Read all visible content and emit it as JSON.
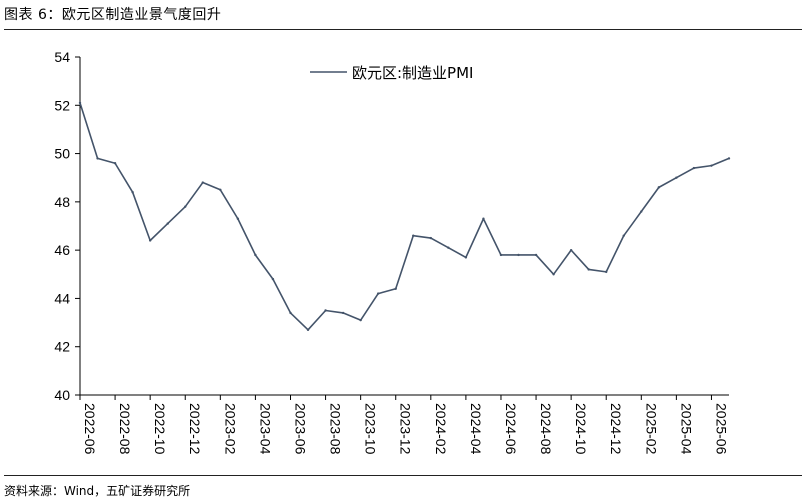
{
  "figure": {
    "title": "图表 6：欧元区制造业景气度回升",
    "source": "资料来源：Wind，五矿证券研究所"
  },
  "chart_data": {
    "type": "line",
    "title": "",
    "xlabel": "",
    "ylabel": "",
    "ylim": [
      40,
      54
    ],
    "yticks": [
      40,
      42,
      44,
      46,
      48,
      50,
      52,
      54
    ],
    "x": [
      "2022-06",
      "2022-07",
      "2022-08",
      "2022-09",
      "2022-10",
      "2022-11",
      "2022-12",
      "2023-01",
      "2023-02",
      "2023-03",
      "2023-04",
      "2023-05",
      "2023-06",
      "2023-07",
      "2023-08",
      "2023-09",
      "2023-10",
      "2023-11",
      "2023-12",
      "2024-01",
      "2024-02",
      "2024-03",
      "2024-04",
      "2024-05",
      "2024-06",
      "2024-07",
      "2024-08",
      "2024-09",
      "2024-10",
      "2024-11",
      "2024-12",
      "2025-01",
      "2025-02",
      "2025-03",
      "2025-04",
      "2025-05",
      "2025-06",
      "2025-07"
    ],
    "xtick_labels": [
      "2022-06",
      "2022-08",
      "2022-10",
      "2022-12",
      "2023-02",
      "2023-04",
      "2023-06",
      "2023-08",
      "2023-10",
      "2023-12",
      "2024-02",
      "2024-04",
      "2024-06",
      "2024-08",
      "2024-10",
      "2024-12",
      "2025-02",
      "2025-04",
      "2025-06"
    ],
    "series": [
      {
        "name": "欧元区:制造业PMI",
        "color": "#44546a",
        "values": [
          52.1,
          49.8,
          49.6,
          48.4,
          46.4,
          47.1,
          47.8,
          48.8,
          48.5,
          47.3,
          45.8,
          44.8,
          43.4,
          42.7,
          43.5,
          43.4,
          43.1,
          44.2,
          44.4,
          46.6,
          46.5,
          46.1,
          45.7,
          47.3,
          45.8,
          45.8,
          45.8,
          45.0,
          46.0,
          45.2,
          45.1,
          46.6,
          47.6,
          48.6,
          49.0,
          49.4,
          49.5,
          49.8
        ]
      }
    ],
    "legend": "top-center",
    "grid": false
  }
}
